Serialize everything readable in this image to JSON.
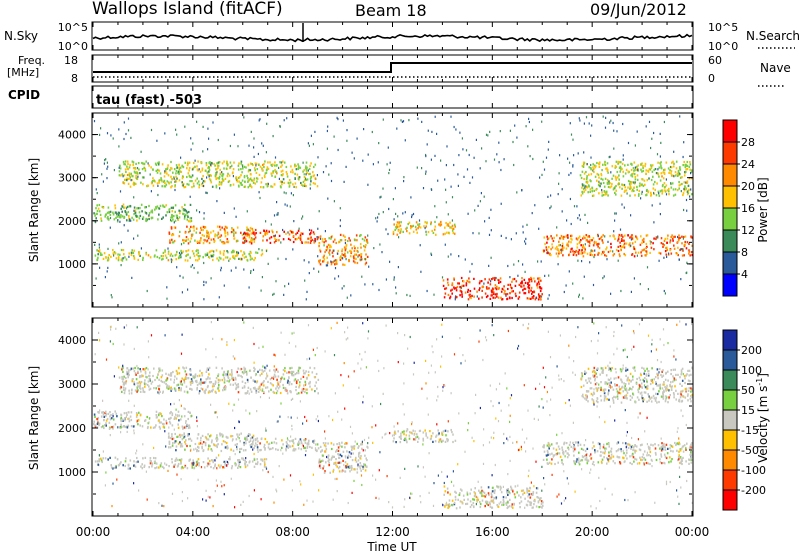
{
  "header": {
    "station": "Wallops Island (fitACF)",
    "beam": "Beam 18",
    "date": "09/Jun/2012"
  },
  "sky_panel": {
    "left_label": "N.Sky",
    "right_label": "N.Search",
    "left_ticks": [
      "10^5",
      "10^0"
    ],
    "right_ticks": [
      "10^5",
      "10^0"
    ],
    "line_color": "#000000"
  },
  "freq_panel": {
    "left_label_1": "Freq.",
    "left_label_2": "[MHz]",
    "right_label": "Nave",
    "left_ticks": [
      "18",
      "8"
    ],
    "right_ticks": [
      "60",
      "0"
    ]
  },
  "cpid_panel": {
    "left_label": "CPID",
    "text": "tau (fast) -503"
  },
  "chart_data": [
    {
      "type": "heatmap",
      "name": "power",
      "xlabel": "",
      "ylabel": "Slant Range [km]",
      "ylim": [
        0,
        4500
      ],
      "y_ticks": [
        "1000",
        "2000",
        "3000",
        "4000"
      ],
      "colorbar_label": "Power [dB]",
      "colorbar_ticks": [
        "28",
        "24",
        "20",
        "16",
        "12",
        "8",
        "4"
      ],
      "colorbar_colors": [
        "#ff0000",
        "#ff3a00",
        "#ff8a00",
        "#ffc000",
        "#78d040",
        "#3a8a5a",
        "#2a5a9a",
        "#0000ff"
      ],
      "bands": [
        {
          "x": [
            0.05,
            7.0
          ],
          "range": [
            1100,
            1350
          ],
          "level": 0.5
        },
        {
          "x": [
            3.0,
            6.5
          ],
          "range": [
            1500,
            1900
          ],
          "level": 0.7
        },
        {
          "x": [
            6.0,
            9.0
          ],
          "range": [
            1500,
            1800
          ],
          "level": 0.9
        },
        {
          "x": [
            9.0,
            11.0
          ],
          "range": [
            1000,
            1700
          ],
          "level": 0.7
        },
        {
          "x": [
            12.0,
            14.5
          ],
          "range": [
            1700,
            2000
          ],
          "level": 0.6
        },
        {
          "x": [
            14.0,
            18.0
          ],
          "range": [
            200,
            700
          ],
          "level": 1.0
        },
        {
          "x": [
            18.0,
            24.0
          ],
          "range": [
            1200,
            1700
          ],
          "level": 0.8
        },
        {
          "x": [
            1.0,
            9.0
          ],
          "range": [
            2800,
            3400
          ],
          "level": 0.5
        },
        {
          "x": [
            19.5,
            24.0
          ],
          "range": [
            2600,
            3400
          ],
          "level": 0.5
        },
        {
          "x": [
            0.0,
            4.0
          ],
          "range": [
            2000,
            2400
          ],
          "level": 0.4
        }
      ]
    },
    {
      "type": "heatmap",
      "name": "velocity",
      "xlabel": "Time UT",
      "ylabel": "Slant Range [km]",
      "ylim": [
        0,
        4500
      ],
      "x_ticks": [
        "00:00",
        "04:00",
        "08:00",
        "12:00",
        "16:00",
        "20:00",
        "00:00"
      ],
      "y_ticks": [
        "1000",
        "2000",
        "3000",
        "4000"
      ],
      "colorbar_label": "Velocity [m s",
      "colorbar_label_sup": "-1",
      "colorbar_label_end": "]",
      "colorbar_ticks": [
        "200",
        "100",
        "50",
        "15",
        "-15",
        "-50",
        "-100",
        "-200"
      ],
      "colorbar_colors": [
        "#1a2aa0",
        "#2a5a9a",
        "#3a8a5a",
        "#78d040",
        "#c8c8c0",
        "#ffc000",
        "#ff8a00",
        "#ff3a00",
        "#ff0000"
      ]
    }
  ]
}
